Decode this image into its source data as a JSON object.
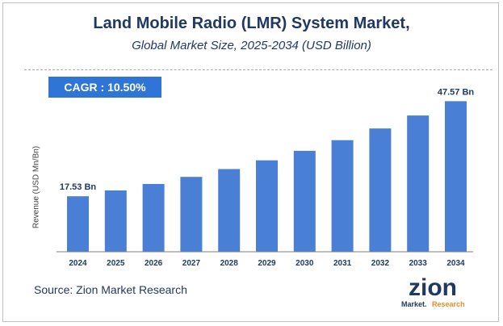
{
  "header": {
    "title": "Land Mobile Radio (LMR) System Market,",
    "subtitle": "Global Market Size, 2025-2034 (USD Billion)"
  },
  "badge": {
    "cagr": "CAGR :  10.50%"
  },
  "footer": {
    "source": "Source: Zion Market Research"
  },
  "logo": {
    "main": "zion",
    "sub_left": "Market.",
    "sub_right": "Research"
  },
  "colors": {
    "bar": "#4a7fd6",
    "title": "#1f3864",
    "badge": "#2e75d6"
  },
  "chart_data": {
    "type": "bar",
    "title": "Land Mobile Radio (LMR) System Market,",
    "subtitle": "Global Market Size, 2025-2034 (USD Billion)",
    "ylabel": "Revenue (USD Mn/Bn)",
    "xlabel": "",
    "categories": [
      "2024",
      "2025",
      "2026",
      "2027",
      "2028",
      "2029",
      "2030",
      "2031",
      "2032",
      "2033",
      "2034"
    ],
    "values": [
      17.53,
      19.37,
      21.4,
      23.65,
      26.13,
      28.87,
      31.9,
      35.25,
      38.96,
      43.05,
      47.57
    ],
    "data_labels": [
      {
        "index": 0,
        "text": "17.53 Bn"
      },
      {
        "index": 10,
        "text": "47.57 Bn"
      }
    ],
    "ylim": [
      0,
      52
    ],
    "grid": false
  }
}
